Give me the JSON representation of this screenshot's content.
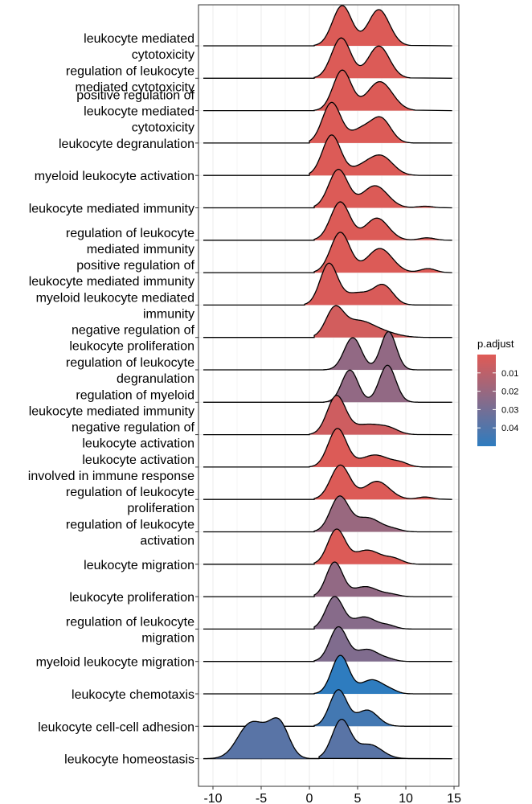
{
  "chart_data": {
    "type": "ridgeline",
    "xlabel": "",
    "ylabel": "",
    "xlim": [
      -11.5,
      15.5
    ],
    "xticks": [
      -10,
      -5,
      0,
      5,
      10,
      15
    ],
    "xtick_labels": [
      "-10",
      "-5",
      "0",
      "5",
      "10",
      "15"
    ],
    "grid": true,
    "legend": {
      "title": "p.adjust",
      "placement": "right",
      "range": [
        0.0,
        0.05
      ],
      "ticks": [
        0.01,
        0.02,
        0.03,
        0.04
      ],
      "tick_labels": [
        "0.01",
        "0.02",
        "0.03",
        "0.04"
      ],
      "color_low": "#e05a55",
      "color_high": "#2e7cbf"
    },
    "categories": [
      {
        "label": "leukocyte mediated cytotoxicity",
        "label_lines": [
          "leukocyte mediated",
          "cytotoxicity"
        ],
        "p_adjust": 0.001,
        "x_range": [
          0.5,
          10.5
        ],
        "peaks": [
          [
            3.4,
            1.0,
            1.0
          ],
          [
            7.2,
            0.9,
            1.1
          ]
        ]
      },
      {
        "label": "regulation of leukocyte mediated cytotoxicity",
        "label_lines": [
          "regulation of leukocyte",
          "mediated cytotoxicity"
        ],
        "p_adjust": 0.001,
        "x_range": [
          0.5,
          10.5
        ],
        "peaks": [
          [
            3.3,
            1.0,
            1.0
          ],
          [
            7.2,
            0.8,
            1.1
          ]
        ]
      },
      {
        "label": "positive regulation of leukocyte mediated cytotoxicity",
        "label_lines": [
          "positive regulation of",
          "leukocyte mediated",
          "cytotoxicity"
        ],
        "p_adjust": 0.001,
        "x_range": [
          0.5,
          11
        ],
        "peaks": [
          [
            3.4,
            1.0,
            0.95
          ],
          [
            7.3,
            0.72,
            1.3
          ]
        ]
      },
      {
        "label": "leukocyte degranulation",
        "label_lines": [
          "leukocyte degranulation"
        ],
        "p_adjust": 0.001,
        "x_range": [
          0,
          11
        ],
        "peaks": [
          [
            2.3,
            1.0,
            0.95
          ],
          [
            5.5,
            0.35,
            1.2
          ],
          [
            7.5,
            0.55,
            1.0
          ]
        ]
      },
      {
        "label": "myeloid leukocyte activation",
        "label_lines": [
          "myeloid leukocyte activation"
        ],
        "p_adjust": 0.001,
        "x_range": [
          0,
          11.5
        ],
        "peaks": [
          [
            2.3,
            1.0,
            0.95
          ],
          [
            5.5,
            0.2,
            1.2
          ],
          [
            7.5,
            0.45,
            1.2
          ]
        ]
      },
      {
        "label": "leukocyte mediated immunity",
        "label_lines": [
          "leukocyte mediated immunity"
        ],
        "p_adjust": 0.001,
        "x_range": [
          0.5,
          13.5
        ],
        "peaks": [
          [
            3.0,
            0.95,
            1.0
          ],
          [
            6.8,
            0.55,
            1.3
          ],
          [
            12.0,
            0.04,
            0.8
          ]
        ]
      },
      {
        "label": "regulation of leukocyte mediated immunity",
        "label_lines": [
          "regulation of leukocyte",
          "mediated immunity"
        ],
        "p_adjust": 0.001,
        "x_range": [
          0.5,
          14
        ],
        "peaks": [
          [
            3.2,
            0.95,
            1.0
          ],
          [
            7.0,
            0.55,
            1.2
          ],
          [
            12.2,
            0.06,
            0.8
          ]
        ]
      },
      {
        "label": "positive regulation of leukocyte mediated immunity",
        "label_lines": [
          "positive regulation of",
          "leukocyte mediated immunity"
        ],
        "p_adjust": 0.001,
        "x_range": [
          0.5,
          14
        ],
        "peaks": [
          [
            3.2,
            1.0,
            1.0
          ],
          [
            7.3,
            0.6,
            1.3
          ],
          [
            12.3,
            0.1,
            0.8
          ]
        ]
      },
      {
        "label": "myeloid leukocyte mediated immunity",
        "label_lines": [
          "myeloid leukocyte mediated",
          "immunity"
        ],
        "p_adjust": 0.002,
        "x_range": [
          -0.5,
          11
        ],
        "peaks": [
          [
            2.0,
            1.0,
            0.9
          ],
          [
            5.0,
            0.3,
            1.5
          ],
          [
            7.7,
            0.45,
            1.0
          ]
        ]
      },
      {
        "label": "negative regulation of leukocyte proliferation",
        "label_lines": [
          "negative regulation of",
          "leukocyte proliferation"
        ],
        "p_adjust": 0.004,
        "x_range": [
          0.5,
          12.5
        ],
        "peaks": [
          [
            2.6,
            0.65,
            0.9
          ],
          [
            5.0,
            0.4,
            1.6
          ],
          [
            7.8,
            0.1,
            1.5
          ]
        ]
      },
      {
        "label": "regulation of leukocyte degranulation",
        "label_lines": [
          "regulation of leukocyte",
          "degranulation"
        ],
        "p_adjust": 0.022,
        "x_range": [
          1.5,
          12
        ],
        "peaks": [
          [
            4.5,
            0.8,
            0.9
          ],
          [
            8.2,
            0.95,
            0.8
          ]
        ]
      },
      {
        "label": "regulation of myeloid leukocyte mediated immunity",
        "label_lines": [
          "regulation of myeloid",
          "leukocyte mediated immunity"
        ],
        "p_adjust": 0.022,
        "x_range": [
          1.5,
          11.5
        ],
        "peaks": [
          [
            4.2,
            0.8,
            0.85
          ],
          [
            8.1,
            0.92,
            0.85
          ]
        ]
      },
      {
        "label": "negative regulation of leukocyte activation",
        "label_lines": [
          "negative regulation of",
          "leukocyte activation"
        ],
        "p_adjust": 0.005,
        "x_range": [
          0,
          11.5
        ],
        "peaks": [
          [
            2.8,
            0.95,
            0.95
          ],
          [
            6.0,
            0.25,
            1.5
          ],
          [
            8.3,
            0.12,
            1.0
          ]
        ]
      },
      {
        "label": "leukocyte activation involved in immune response",
        "label_lines": [
          "leukocyte activation",
          "involved in immune response"
        ],
        "p_adjust": 0.001,
        "x_range": [
          0,
          12
        ],
        "peaks": [
          [
            2.9,
            0.95,
            0.95
          ],
          [
            6.8,
            0.3,
            1.5
          ],
          [
            9.5,
            0.08,
            0.8
          ]
        ]
      },
      {
        "label": "regulation of leukocyte proliferation",
        "label_lines": [
          "regulation of leukocyte",
          "proliferation"
        ],
        "p_adjust": 0.001,
        "x_range": [
          0.5,
          13.5
        ],
        "peaks": [
          [
            3.2,
            0.85,
            1.0
          ],
          [
            7.0,
            0.45,
            1.3
          ],
          [
            12.0,
            0.06,
            0.8
          ]
        ]
      },
      {
        "label": "regulation of leukocyte activation",
        "label_lines": [
          "regulation of leukocyte",
          "activation"
        ],
        "p_adjust": 0.02,
        "x_range": [
          0.5,
          11.5
        ],
        "peaks": [
          [
            3.1,
            0.85,
            0.95
          ],
          [
            6.0,
            0.35,
            1.4
          ],
          [
            8.8,
            0.05,
            0.8
          ]
        ]
      },
      {
        "label": "leukocyte migration",
        "label_lines": [
          "leukocyte migration"
        ],
        "p_adjust": 0.001,
        "x_range": [
          0.5,
          11.5
        ],
        "peaks": [
          [
            2.8,
            0.85,
            0.9
          ],
          [
            6.0,
            0.35,
            1.4
          ],
          [
            8.8,
            0.12,
            0.9
          ]
        ]
      },
      {
        "label": "leukocyte proliferation",
        "label_lines": [
          "leukocyte proliferation"
        ],
        "p_adjust": 0.022,
        "x_range": [
          0.5,
          11.5
        ],
        "peaks": [
          [
            2.6,
            0.85,
            0.85
          ],
          [
            5.8,
            0.25,
            1.3
          ],
          [
            8.5,
            0.05,
            0.8
          ]
        ]
      },
      {
        "label": "regulation of leukocyte migration",
        "label_lines": [
          "regulation of leukocyte",
          "migration"
        ],
        "p_adjust": 0.025,
        "x_range": [
          0.5,
          11
        ],
        "peaks": [
          [
            2.6,
            0.8,
            0.9
          ],
          [
            5.7,
            0.3,
            1.2
          ],
          [
            8.2,
            0.08,
            0.8
          ]
        ]
      },
      {
        "label": "myeloid leukocyte migration",
        "label_lines": [
          "myeloid leukocyte migration"
        ],
        "p_adjust": 0.027,
        "x_range": [
          0.5,
          10.5
        ],
        "peaks": [
          [
            3.0,
            0.85,
            0.9
          ],
          [
            6.0,
            0.3,
            1.2
          ],
          [
            8.3,
            0.04,
            0.7
          ]
        ]
      },
      {
        "label": "leukocyte chemotaxis",
        "label_lines": [
          "leukocyte chemotaxis"
        ],
        "p_adjust": 0.05,
        "x_range": [
          0.5,
          11
        ],
        "peaks": [
          [
            3.2,
            0.95,
            0.9
          ],
          [
            6.5,
            0.35,
            1.2
          ],
          [
            8.5,
            0.05,
            0.7
          ]
        ]
      },
      {
        "label": "leukocyte cell-cell adhesion",
        "label_lines": [
          "leukocyte cell-cell adhesion"
        ],
        "p_adjust": 0.044,
        "x_range": [
          0.5,
          10
        ],
        "peaks": [
          [
            3.0,
            0.9,
            0.9
          ],
          [
            6.0,
            0.4,
            1.1
          ]
        ]
      },
      {
        "label": "leukocyte homeostasis",
        "label_lines": [
          "leukocyte homeostasis"
        ],
        "p_adjust": 0.038,
        "x_range": [
          1,
          10.5
        ],
        "peaks": [
          [
            3.3,
            0.95,
            0.95
          ],
          [
            6.2,
            0.35,
            1.3
          ]
        ]
      },
      {
        "label": "leukocyte homeostasis (lower curve)",
        "label_lines": [],
        "p_adjust": 0.038,
        "x_range": [
          -11,
          0
        ],
        "peaks": [
          [
            -6.2,
            0.82,
            1.3
          ],
          [
            -3.1,
            0.85,
            1.0
          ],
          [
            -4.6,
            0.25,
            1.0
          ]
        ]
      }
    ]
  }
}
